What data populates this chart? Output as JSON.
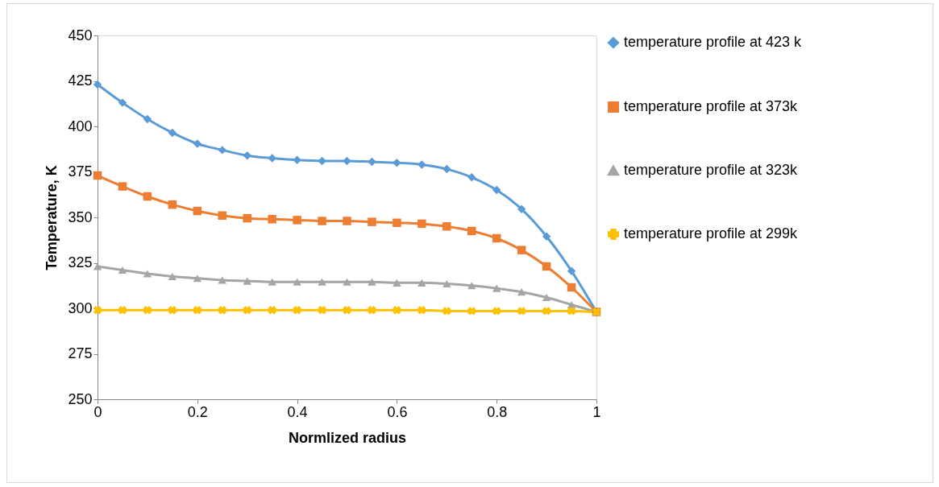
{
  "chart_data": {
    "type": "line",
    "xlabel": "Normlized radius",
    "ylabel": "Temperature, K",
    "x": [
      0,
      0.05,
      0.1,
      0.15,
      0.2,
      0.25,
      0.3,
      0.35,
      0.4,
      0.45,
      0.5,
      0.55,
      0.6,
      0.65,
      0.7,
      0.75,
      0.8,
      0.85,
      0.9,
      0.95,
      1
    ],
    "series": [
      {
        "name": "temperature profile at 423 k",
        "color": "#5b9bd5",
        "marker": "diamond",
        "values": [
          423,
          413,
          404,
          396.5,
          390.5,
          387,
          384,
          382.5,
          381.5,
          381,
          381,
          380.5,
          380,
          379,
          376.5,
          372,
          365,
          354.5,
          339.5,
          320.5,
          298
        ]
      },
      {
        "name": "temperature profile at 373k",
        "color": "#ed7d31",
        "marker": "square",
        "values": [
          373,
          367,
          361.5,
          357,
          353.5,
          351,
          349.5,
          349,
          348.5,
          348,
          348,
          347.5,
          347,
          346.5,
          345,
          342.5,
          338.5,
          332,
          323,
          311.5,
          298
        ]
      },
      {
        "name": "temperature profile at 323k",
        "color": "#a5a5a5",
        "marker": "triangle",
        "values": [
          323,
          321,
          319,
          317.5,
          316.5,
          315.5,
          315,
          314.5,
          314.5,
          314.5,
          314.5,
          314.5,
          314,
          314,
          313.5,
          312.5,
          311,
          309,
          306,
          302,
          298
        ]
      },
      {
        "name": "temperature profile at 299k",
        "color": "#ffc000",
        "marker": "cross",
        "values": [
          299,
          299,
          299,
          299,
          299,
          299,
          299,
          299,
          299,
          299,
          299,
          299,
          299,
          299,
          298.5,
          298.5,
          298.5,
          298.5,
          298.5,
          298.5,
          298
        ]
      }
    ],
    "xlim": [
      0,
      1
    ],
    "xticks": [
      0,
      0.2,
      0.4,
      0.6,
      0.8,
      1
    ],
    "ylim": [
      250,
      450
    ],
    "yticks": [
      250,
      275,
      300,
      325,
      350,
      375,
      400,
      425,
      450
    ],
    "grid": false,
    "legend": "right",
    "line_style": "solid"
  }
}
